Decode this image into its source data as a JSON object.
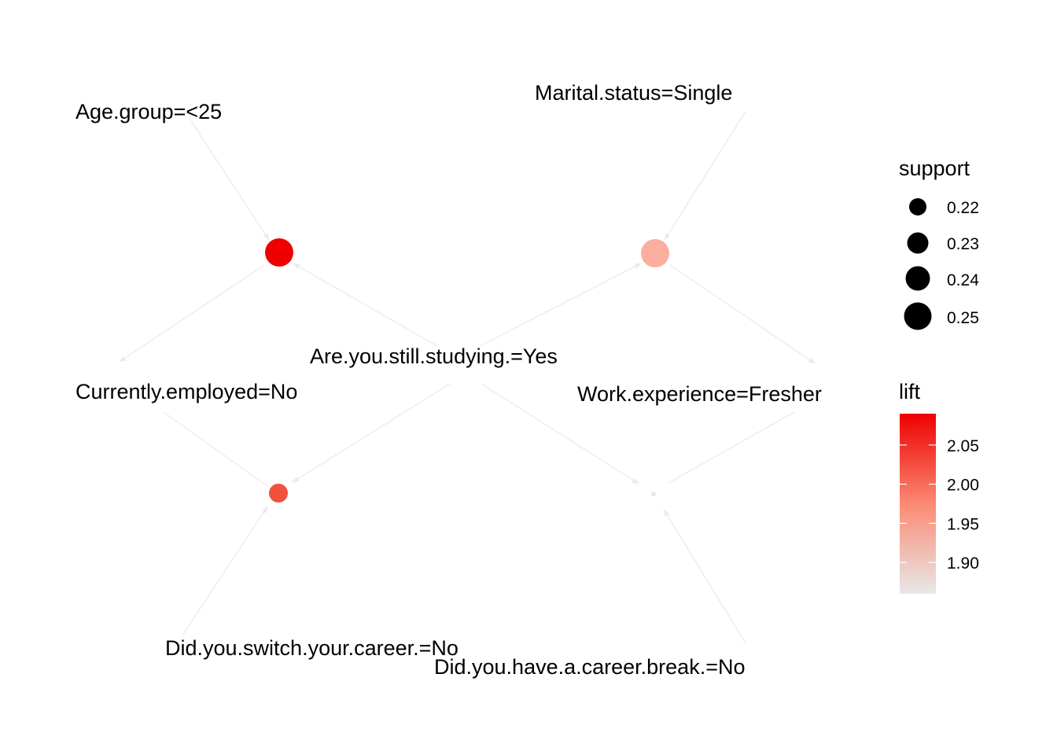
{
  "items": [
    {
      "id": "age",
      "label": "Age.group=<25"
    },
    {
      "id": "marital",
      "label": "Marital.status=Single"
    },
    {
      "id": "studying",
      "label": "Are.you.still.studying.=Yes"
    },
    {
      "id": "employed",
      "label": "Currently.employed=No"
    },
    {
      "id": "workexp",
      "label": "Work.experience=Fresher"
    },
    {
      "id": "switch",
      "label": "Did.you.switch.your.career.=No"
    },
    {
      "id": "careerbreak",
      "label": "Did.you.have.a.career.break.=No"
    }
  ],
  "rules": [
    {
      "id": "r1",
      "support": 0.25,
      "lift": 2.08,
      "color": "#ee0000",
      "lhs": [
        "age",
        "studying"
      ],
      "rhs": "employed"
    },
    {
      "id": "r2",
      "support": 0.25,
      "lift": 1.92,
      "color": "#fcae9f",
      "lhs": [
        "marital",
        "studying"
      ],
      "rhs": "workexp"
    },
    {
      "id": "r3",
      "support": 0.23,
      "lift": 2.01,
      "color": "#f1523c",
      "lhs": [
        "employed",
        "studying"
      ],
      "rhs": "switch"
    },
    {
      "id": "r4",
      "support": 0.21,
      "lift": 1.86,
      "color": "#e9e9e9",
      "lhs": [
        "workexp",
        "studying"
      ],
      "rhs": "careerbreak"
    }
  ],
  "legend": {
    "support": {
      "title": "support",
      "entries": [
        {
          "label": "0.22",
          "value": 0.22
        },
        {
          "label": "0.23",
          "value": 0.23
        },
        {
          "label": "0.24",
          "value": 0.24
        },
        {
          "label": "0.25",
          "value": 0.25
        }
      ]
    },
    "lift": {
      "title": "lift",
      "range": [
        1.86,
        2.09
      ],
      "color_low": "#e8e8e8",
      "color_high": "#ee0000",
      "ticks": [
        {
          "label": "2.05",
          "value": 2.05
        },
        {
          "label": "2.00",
          "value": 2.0
        },
        {
          "label": "1.95",
          "value": 1.95
        },
        {
          "label": "1.90",
          "value": 1.9
        }
      ]
    }
  }
}
